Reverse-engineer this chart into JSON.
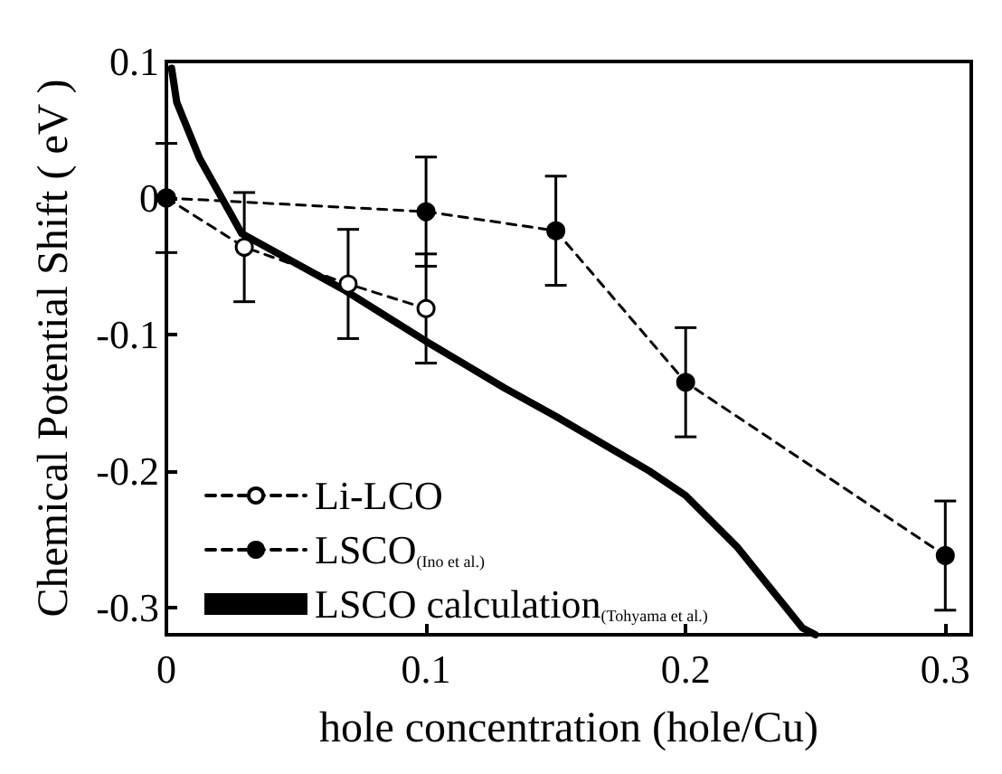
{
  "chart_data": {
    "type": "line",
    "xlabel": "hole concentration (hole/Cu)",
    "ylabel": "Chemical Potential Shift ( eV )",
    "xlim": [
      0,
      0.31
    ],
    "xticks": [
      0,
      0.1,
      0.2,
      0.3
    ],
    "ylim": [
      -0.32,
      0.1
    ],
    "yticks": [
      0.1,
      0,
      -0.1,
      -0.2,
      -0.3
    ],
    "grid": false,
    "legend": "bottom left",
    "series": [
      {
        "name": "Li-LCO",
        "color": "#000000",
        "marker": "circle",
        "line_style": "dashed",
        "x": [
          0,
          0.03,
          0.07,
          0.1
        ],
        "values": [
          0,
          -0.036,
          -0.063,
          -0.081
        ],
        "errors": [
          0.04,
          0.04,
          0.04,
          0.04
        ]
      },
      {
        "name": "LSCO$_{(Ino et al.)}$",
        "color": "#000000",
        "marker": "circle",
        "line_style": "dashed",
        "x": [
          0,
          0.1,
          0.15,
          0.2,
          0.3
        ],
        "values": [
          0,
          -0.01,
          -0.024,
          -0.135,
          -0.262
        ],
        "errors": [
          null,
          0.04,
          0.04,
          0.04,
          0.04
        ]
      },
      {
        "name": "LSCO calculation$_{(Tohyama et al.)}$",
        "color": "#000000",
        "marker": "none",
        "line_style": "solid",
        "x": [
          0.002,
          0.004,
          0.0128,
          0.029,
          0.069,
          0.1,
          0.13,
          0.15,
          0.186,
          0.2,
          0.22,
          0.245,
          0.25
        ],
        "values": [
          0.095,
          0.07,
          0.029,
          -0.026,
          -0.068,
          -0.105,
          -0.139,
          -0.16,
          -0.2,
          -0.218,
          -0.256,
          -0.315,
          -0.32
        ]
      }
    ]
  }
}
